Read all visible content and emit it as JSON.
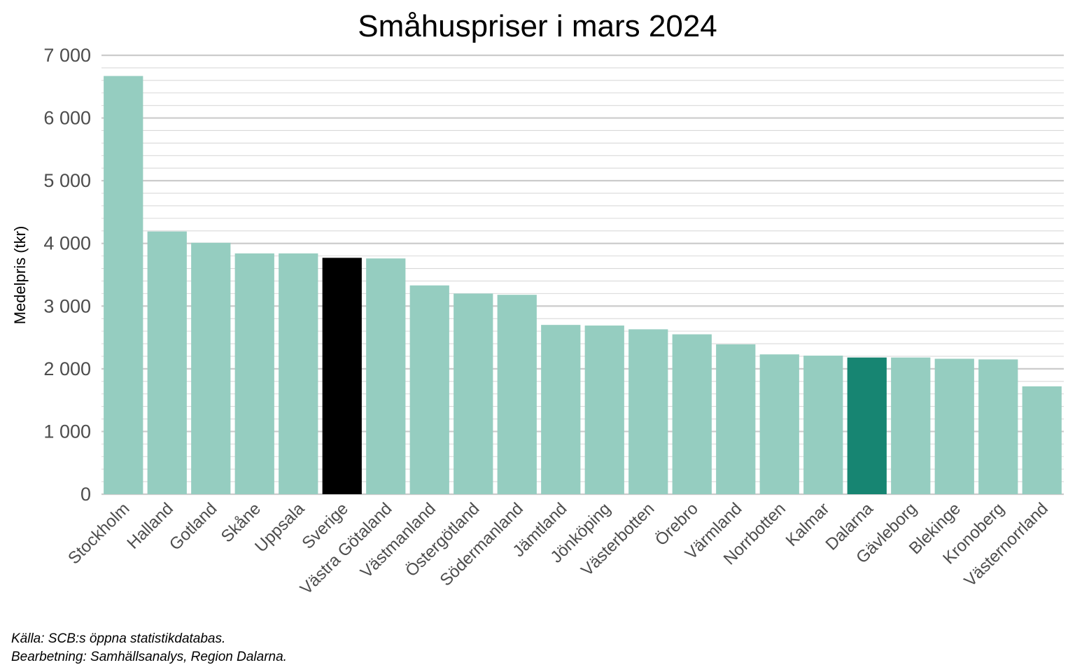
{
  "chart_data": {
    "type": "bar",
    "title": "Småhuspriser i mars 2024",
    "ylabel": "Medelpris (tkr)",
    "xlabel": "",
    "ylim": [
      0,
      7000
    ],
    "yticks": [
      0,
      1000,
      2000,
      3000,
      4000,
      5000,
      6000,
      7000
    ],
    "ytick_labels": [
      "0",
      "1 000",
      "2 000",
      "3 000",
      "4 000",
      "5 000",
      "6 000",
      "7 000"
    ],
    "grid": true,
    "categories": [
      "Stockholm",
      "Halland",
      "Gotland",
      "Skåne",
      "Uppsala",
      "Sverige",
      "Västra Götaland",
      "Västmanland",
      "Östergötland",
      "Södermanland",
      "Jämtland",
      "Jönköping",
      "Västerbotten",
      "Örebro",
      "Värmland",
      "Norrbotten",
      "Kalmar",
      "Dalarna",
      "Gävleborg",
      "Blekinge",
      "Kronoberg",
      "Västernorrland"
    ],
    "values": [
      6670,
      4190,
      4010,
      3840,
      3840,
      3770,
      3760,
      3330,
      3200,
      3180,
      2700,
      2690,
      2630,
      2550,
      2390,
      2230,
      2210,
      2180,
      2180,
      2160,
      2150,
      1720
    ],
    "colors": {
      "default": "#95cdc0",
      "Sverige": "#000000",
      "Dalarna": "#178572"
    }
  },
  "caption": {
    "source": "Källa: SCB:s öppna statistikdatabas.",
    "processing": "Bearbetning: Samhällsanalys, Region Dalarna."
  }
}
